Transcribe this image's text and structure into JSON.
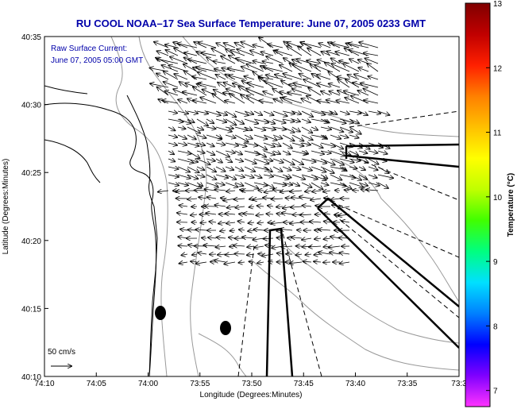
{
  "title": "RU COOL  NOAA–17  Sea Surface Temperature:  June 07, 2005 0233 GMT",
  "annotation_line1": "Raw Surface Current:",
  "annotation_line2": "June 07, 2005 05:00 GMT",
  "scale_label": "50 cm/s",
  "x_axis_label": "Longitude (Degrees:Minutes)",
  "y_axis_label": "Latitude (Degrees:Minutes)",
  "x_ticks": [
    "74:10",
    "74:05",
    "74:00",
    "73:55",
    "73:50",
    "73:45",
    "73:40",
    "73:35",
    "73:3"
  ],
  "y_ticks": [
    "40:35",
    "40:30",
    "40:25",
    "40:20",
    "40:15",
    "40:10"
  ],
  "colorbar": {
    "label": "Temperature (°C)",
    "ticks": [
      "13",
      "12",
      "11",
      "10",
      "9",
      "8",
      "7"
    ],
    "colors": [
      "#ff33ff",
      "#7f00ff",
      "#0000ff",
      "#0080ff",
      "#00e0ff",
      "#00ff80",
      "#40ff00",
      "#c0ff00",
      "#ffff00",
      "#ffc000",
      "#ff8000",
      "#ff2000",
      "#c00000",
      "#800000"
    ]
  },
  "chart_data": {
    "type": "map",
    "title": "RU COOL  NOAA–17  Sea Surface Temperature:  June 07, 2005 0233 GMT",
    "xlabel": "Longitude (Degrees:Minutes)",
    "ylabel": "Latitude (Degrees:Minutes)",
    "xlim": [
      "74:10",
      "73:30"
    ],
    "ylim": [
      "40:10",
      "40:35"
    ],
    "colorbar_range": [
      7,
      13
    ],
    "vector_scale": "50 cm/s"
  }
}
